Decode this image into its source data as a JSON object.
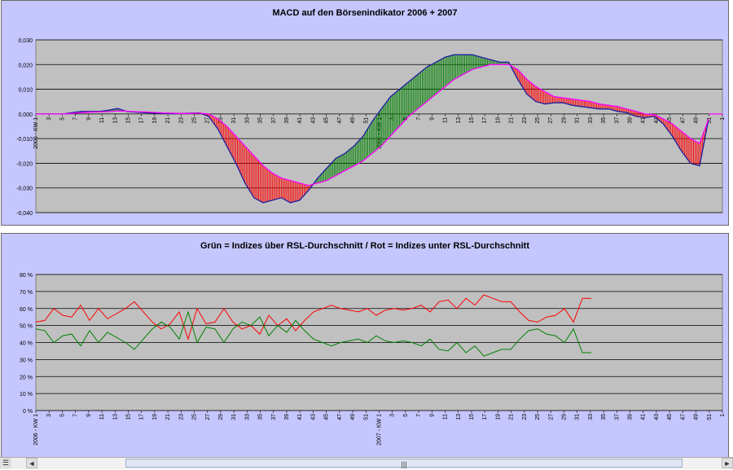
{
  "chart_data": [
    {
      "type": "line",
      "title": "MACD auf den Börsenindikator 2006 + 2007",
      "xlabel": "",
      "ylabel": "",
      "ylim": [
        -0.04,
        0.03
      ],
      "yticks": [
        "0,030",
        "0,020",
        "0,010",
        "0,000",
        "-0,010",
        "-0,020",
        "-0,030",
        "-0,040"
      ],
      "ytick_values": [
        0.03,
        0.02,
        0.01,
        0.0,
        -0.01,
        -0.02,
        -0.03,
        -0.04
      ],
      "xtick_labels": [
        "2006 - KW 1",
        "3",
        "5",
        "7",
        "9",
        "11",
        "13",
        "15",
        "17",
        "19",
        "21",
        "23",
        "25",
        "27",
        "29",
        "31",
        "33",
        "35",
        "37",
        "39",
        "41",
        "43",
        "45",
        "47",
        "49",
        "51",
        "2007 - KW 1",
        "3",
        "5",
        "7",
        "9",
        "11",
        "13",
        "15",
        "17",
        "19",
        "21",
        "23",
        "25",
        "27",
        "29",
        "31",
        "33",
        "35",
        "37",
        "39",
        "41",
        "43",
        "45",
        "47",
        "49",
        "51",
        "1"
      ],
      "grid": true,
      "series": [
        {
          "color": "#1f1f9f",
          "values": [
            0,
            0,
            0,
            0,
            0.0005,
            0.001,
            0.001,
            0.001,
            0.0015,
            0.0022,
            0.001,
            0.0007,
            0.0005,
            0.0003,
            0.0002,
            0.0001,
            0.0002,
            0.0003,
            0.0004,
            -0.001,
            -0.006,
            -0.013,
            -0.02,
            -0.028,
            -0.034,
            -0.036,
            -0.035,
            -0.034,
            -0.036,
            -0.035,
            -0.031,
            -0.026,
            -0.022,
            -0.018,
            -0.016,
            -0.013,
            -0.009,
            -0.003,
            0.002,
            0.007,
            0.01,
            0.013,
            0.016,
            0.019,
            0.021,
            0.023,
            0.024,
            0.024,
            0.024,
            0.023,
            0.022,
            0.021,
            0.021,
            0.014,
            0.008,
            0.005,
            0.004,
            0.0045,
            0.0045,
            0.0035,
            0.003,
            0.0025,
            0.002,
            0.002,
            0.001,
            0.0005,
            -0.001,
            -0.0015,
            -0.001,
            -0.004,
            -0.009,
            -0.015,
            -0.02,
            -0.021,
            -0.002
          ]
        },
        {
          "color": "#ff00ff",
          "values": [
            0,
            0,
            0,
            0,
            0.0002,
            0.0005,
            0.0007,
            0.0008,
            0.0009,
            0.0012,
            0.0011,
            0.0009,
            0.0008,
            0.0006,
            0.0004,
            0.0003,
            0.0002,
            0.0002,
            0.0003,
            0,
            -0.002,
            -0.005,
            -0.009,
            -0.013,
            -0.017,
            -0.021,
            -0.024,
            -0.026,
            -0.027,
            -0.028,
            -0.029,
            -0.028,
            -0.027,
            -0.025,
            -0.023,
            -0.021,
            -0.019,
            -0.016,
            -0.013,
            -0.009,
            -0.005,
            -0.001,
            0.002,
            0.005,
            0.008,
            0.011,
            0.014,
            0.016,
            0.018,
            0.019,
            0.02,
            0.02,
            0.02,
            0.018,
            0.014,
            0.011,
            0.009,
            0.007,
            0.0065,
            0.006,
            0.0055,
            0.005,
            0.004,
            0.0035,
            0.003,
            0.002,
            0.001,
            0,
            -0.0003,
            -0.002,
            -0.004,
            -0.007,
            -0.01,
            -0.012,
            -0.002
          ]
        }
      ]
    },
    {
      "type": "line",
      "title": "Grün = Indizes über RSL-Durchschnitt / Rot = Indizes unter RSL-Durchschnitt",
      "xlabel": "",
      "ylabel": "",
      "ylim": [
        0,
        80
      ],
      "yticks": [
        "80 %",
        "70 %",
        "60 %",
        "50 %",
        "40 %",
        "30 %",
        "20 %",
        "10 %",
        "0 %"
      ],
      "ytick_values": [
        80,
        70,
        60,
        50,
        40,
        30,
        20,
        10,
        0
      ],
      "xtick_labels": [
        "2006 - KW 1",
        "3",
        "5",
        "7",
        "9",
        "11",
        "13",
        "15",
        "17",
        "19",
        "21",
        "23",
        "25",
        "27",
        "29",
        "31",
        "33",
        "35",
        "37",
        "39",
        "41",
        "43",
        "45",
        "47",
        "49",
        "51",
        "2007 - KW 1",
        "3",
        "5",
        "7",
        "9",
        "11",
        "13",
        "15",
        "17",
        "19",
        "21",
        "23",
        "25",
        "27",
        "29",
        "31",
        "33",
        "35",
        "37",
        "39",
        "41",
        "43",
        "45",
        "47",
        "49",
        "51",
        "1"
      ],
      "grid": true,
      "series": [
        {
          "color": "#ff0000",
          "values": [
            52,
            53,
            60,
            56,
            55,
            62,
            53,
            60,
            54,
            57,
            60,
            64,
            58,
            52,
            48,
            51,
            58,
            42,
            60,
            51,
            52,
            60,
            52,
            48,
            50,
            45,
            56,
            50,
            54,
            47,
            53,
            58,
            60,
            62,
            60,
            59,
            58,
            60,
            56,
            59,
            60,
            59,
            60,
            62,
            58,
            64,
            65,
            60,
            66,
            62,
            68,
            66,
            64,
            64,
            58,
            53,
            52,
            55,
            56,
            60,
            52,
            66,
            66
          ]
        },
        {
          "color": "#008000",
          "values": [
            48,
            47,
            40,
            44,
            45,
            38,
            47,
            40,
            46,
            43,
            40,
            36,
            42,
            48,
            52,
            49,
            42,
            58,
            40,
            49,
            48,
            40,
            48,
            52,
            50,
            55,
            44,
            50,
            46,
            53,
            47,
            42,
            40,
            38,
            40,
            41,
            42,
            40,
            44,
            41,
            40,
            41,
            40,
            38,
            42,
            36,
            35,
            40,
            34,
            38,
            32,
            34,
            36,
            36,
            42,
            47,
            48,
            45,
            44,
            40,
            48,
            34,
            34
          ]
        }
      ]
    }
  ],
  "ui": {
    "scroll_left": "◄",
    "scroll_right": "►",
    "scroll_thumb": "|||",
    "sheet_icon": "☰"
  }
}
